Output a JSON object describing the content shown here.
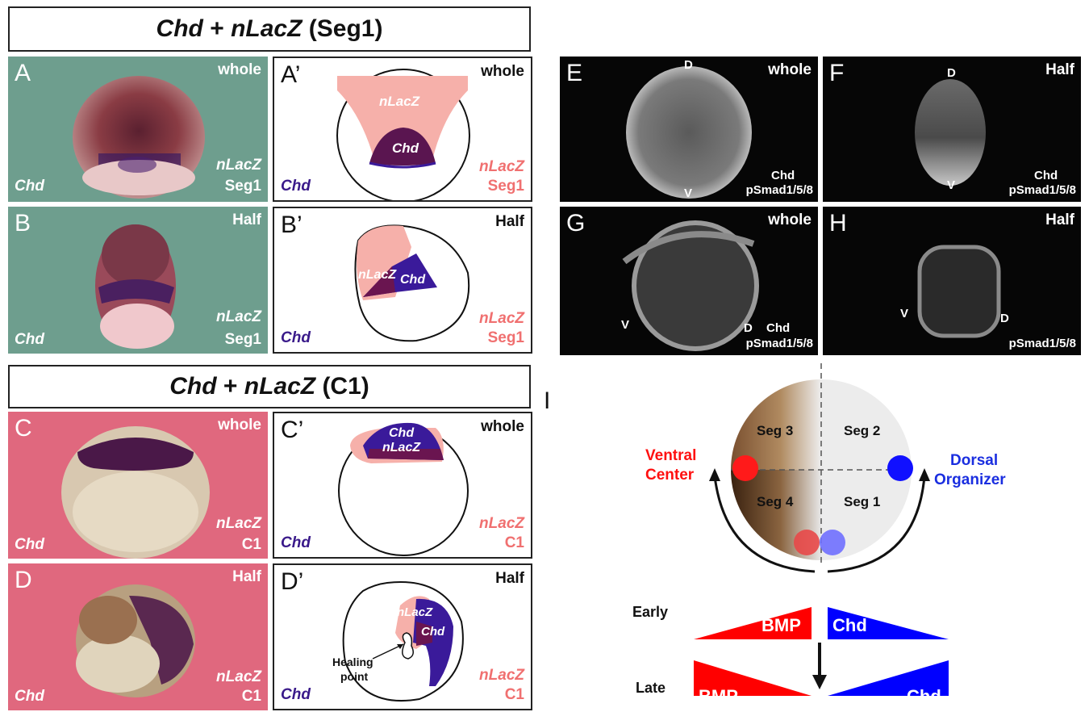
{
  "titles": {
    "seg1": {
      "a": "Chd",
      "b": " + ",
      "c": "nLacZ",
      "d": " (Seg1)"
    },
    "c1": {
      "a": "Chd",
      "b": " + ",
      "c": "nLacZ",
      "d": " (C1)"
    }
  },
  "panels": {
    "A": {
      "letter": "A",
      "state": "whole",
      "stain": "Chd",
      "probe": "nLacZ",
      "seg": "Seg1"
    },
    "A2": {
      "letter": "A’",
      "state": "whole",
      "stain": "Chd",
      "probe": "nLacZ",
      "seg": "Seg1",
      "inner1": "nLacZ",
      "inner2": "Chd"
    },
    "B": {
      "letter": "B",
      "state": "Half",
      "stain": "Chd",
      "probe": "nLacZ",
      "seg": "Seg1"
    },
    "B2": {
      "letter": "B’",
      "state": "Half",
      "stain": "Chd",
      "probe": "nLacZ",
      "seg": "Seg1",
      "inner1": "nLacZ",
      "inner2": "Chd"
    },
    "C": {
      "letter": "C",
      "state": "whole",
      "stain": "Chd",
      "probe": "nLacZ",
      "seg": "C1"
    },
    "C2": {
      "letter": "C’",
      "state": "whole",
      "stain": "Chd",
      "probe": "nLacZ",
      "seg": "C1",
      "inner1": "Chd",
      "inner2": "nLacZ"
    },
    "D": {
      "letter": "D",
      "state": "Half",
      "stain": "Chd",
      "probe": "nLacZ",
      "seg": "C1"
    },
    "D2": {
      "letter": "D’",
      "state": "Half",
      "stain": "Chd",
      "probe": "nLacZ",
      "seg": "C1",
      "inner1": "nLacZ",
      "inner2": "Chd",
      "heal1": "Healing",
      "heal2": "point"
    },
    "E": {
      "letter": "E",
      "state": "whole",
      "top": "D",
      "bottom": "V",
      "l1": "Chd",
      "l2": "pSmad1/5/8"
    },
    "F": {
      "letter": "F",
      "state": "Half",
      "top": "D",
      "bottom": "V",
      "l1": "Chd",
      "l2": "pSmad1/5/8"
    },
    "G": {
      "letter": "G",
      "state": "whole",
      "left": "V",
      "right": "D",
      "l1": "Chd",
      "l2": "pSmad1/5/8"
    },
    "H": {
      "letter": "H",
      "state": "Half",
      "left": "V",
      "right": "D",
      "l2": "pSmad1/5/8"
    }
  },
  "diagram_I": {
    "letter": "I",
    "segments": [
      "Seg 3",
      "Seg 2",
      "Seg 4",
      "Seg 1"
    ],
    "ventral1": "Ventral",
    "ventral2": "Center",
    "dorsal1": "Dorsal",
    "dorsal2": "Organizer",
    "early": "Early",
    "late": "Late",
    "bmp": "BMP",
    "chd": "Chd",
    "colors": {
      "bmp": "#ff0000",
      "chd": "#0000ff",
      "ventral_text": "#ff0000",
      "dorsal_text": "#1a2ee0"
    }
  }
}
